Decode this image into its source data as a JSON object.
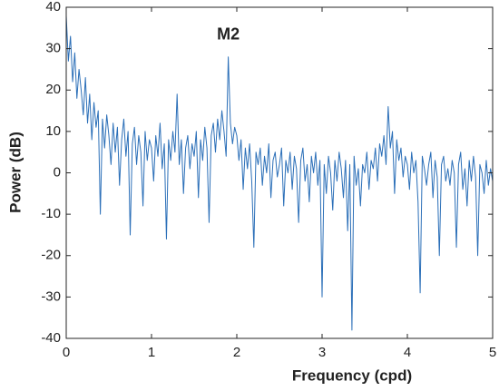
{
  "chart_data": {
    "type": "line",
    "xlabel": "Frequency (cpd)",
    "ylabel": "Power (dB)",
    "annotations": [
      {
        "text": "M2",
        "x": 1.9,
        "y": 28
      }
    ],
    "xlim": [
      0,
      5
    ],
    "ylim": [
      -40,
      40
    ],
    "xticks": [
      0,
      1,
      2,
      3,
      4,
      5
    ],
    "yticks": [
      -40,
      -30,
      -20,
      -10,
      0,
      10,
      20,
      30,
      40
    ],
    "grid": false,
    "series": [
      {
        "color": "#2b6fb8",
        "x": [
          0,
          0.025,
          0.05,
          0.075,
          0.1,
          0.125,
          0.15,
          0.175,
          0.2,
          0.225,
          0.25,
          0.275,
          0.3,
          0.325,
          0.35,
          0.375,
          0.4,
          0.425,
          0.45,
          0.475,
          0.5,
          0.525,
          0.55,
          0.575,
          0.6,
          0.625,
          0.65,
          0.675,
          0.7,
          0.725,
          0.75,
          0.775,
          0.8,
          0.825,
          0.85,
          0.875,
          0.9,
          0.925,
          0.95,
          0.975,
          1,
          1.025,
          1.05,
          1.075,
          1.1,
          1.125,
          1.15,
          1.175,
          1.2,
          1.225,
          1.25,
          1.275,
          1.3,
          1.325,
          1.35,
          1.375,
          1.4,
          1.425,
          1.45,
          1.475,
          1.5,
          1.525,
          1.55,
          1.575,
          1.6,
          1.625,
          1.65,
          1.675,
          1.7,
          1.725,
          1.75,
          1.775,
          1.8,
          1.825,
          1.85,
          1.875,
          1.9,
          1.925,
          1.95,
          1.975,
          2,
          2.025,
          2.05,
          2.075,
          2.1,
          2.125,
          2.15,
          2.175,
          2.2,
          2.225,
          2.25,
          2.275,
          2.3,
          2.325,
          2.35,
          2.375,
          2.4,
          2.425,
          2.45,
          2.475,
          2.5,
          2.525,
          2.55,
          2.575,
          2.6,
          2.625,
          2.65,
          2.675,
          2.7,
          2.725,
          2.75,
          2.775,
          2.8,
          2.825,
          2.85,
          2.875,
          2.9,
          2.925,
          2.95,
          2.975,
          3,
          3.025,
          3.05,
          3.075,
          3.1,
          3.125,
          3.15,
          3.175,
          3.2,
          3.225,
          3.25,
          3.275,
          3.3,
          3.325,
          3.35,
          3.375,
          3.4,
          3.425,
          3.45,
          3.475,
          3.5,
          3.525,
          3.55,
          3.575,
          3.6,
          3.625,
          3.65,
          3.675,
          3.7,
          3.725,
          3.75,
          3.775,
          3.8,
          3.825,
          3.85,
          3.875,
          3.9,
          3.925,
          3.95,
          3.975,
          4,
          4.025,
          4.05,
          4.075,
          4.1,
          4.125,
          4.15,
          4.175,
          4.2,
          4.225,
          4.25,
          4.275,
          4.3,
          4.325,
          4.35,
          4.375,
          4.4,
          4.425,
          4.45,
          4.475,
          4.5,
          4.525,
          4.55,
          4.575,
          4.6,
          4.625,
          4.65,
          4.675,
          4.7,
          4.725,
          4.75,
          4.775,
          4.8,
          4.825,
          4.85,
          4.875,
          4.9,
          4.925,
          4.95,
          4.975,
          5
        ],
        "values": [
          38,
          27,
          33,
          22,
          29,
          18,
          25,
          20,
          14,
          23,
          12,
          19,
          8,
          17,
          11,
          15,
          -10,
          13,
          6,
          14,
          9,
          2,
          12,
          5,
          11,
          -3,
          8,
          13,
          4,
          10,
          -15,
          7,
          11,
          2,
          9,
          5,
          -8,
          10,
          3,
          8,
          6,
          -2,
          9,
          4,
          12,
          1,
          7,
          -16,
          8,
          3,
          10,
          5,
          19,
          2,
          8,
          -5,
          6,
          9,
          1,
          7,
          4,
          10,
          -6,
          8,
          3,
          11,
          6,
          -12,
          9,
          12,
          5,
          13,
          8,
          15,
          10,
          4,
          28,
          12,
          7,
          11,
          9,
          3,
          8,
          -4,
          6,
          1,
          7,
          -2,
          -18,
          5,
          2,
          6,
          -3,
          4,
          0,
          7,
          -6,
          3,
          5,
          -1,
          2,
          6,
          -8,
          3,
          0,
          5,
          -4,
          4,
          1,
          -12,
          3,
          6,
          -2,
          2,
          -7,
          4,
          0,
          5,
          -3,
          3,
          -30,
          2,
          -5,
          4,
          0,
          -9,
          3,
          -2,
          5,
          1,
          -6,
          3,
          -14,
          2,
          -38,
          4,
          -3,
          1,
          -8,
          2,
          0,
          5,
          -4,
          3,
          1,
          6,
          -2,
          7,
          4,
          9,
          2,
          16,
          6,
          10,
          -5,
          8,
          3,
          6,
          -1,
          4,
          2,
          -4,
          5,
          0,
          3,
          -7,
          -29,
          4,
          1,
          -3,
          2,
          5,
          -6,
          3,
          -1,
          -20,
          2,
          4,
          -2,
          1,
          -3,
          3,
          0,
          -18,
          2,
          5,
          -4,
          1,
          -8,
          3,
          -2,
          4,
          -1,
          -20,
          2,
          0,
          -5,
          3,
          -3,
          1,
          -2
        ]
      }
    ]
  }
}
